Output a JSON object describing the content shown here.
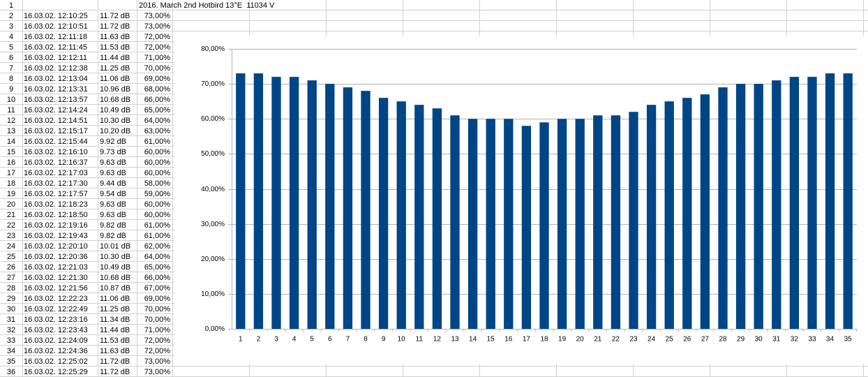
{
  "sheet": {
    "row_headers": [
      "1",
      "2",
      "3",
      "4",
      "5",
      "6",
      "7",
      "8",
      "9",
      "10",
      "11",
      "12",
      "13",
      "14",
      "15",
      "16",
      "17",
      "18",
      "19",
      "20",
      "21",
      "22",
      "23",
      "24",
      "25",
      "26",
      "27",
      "28",
      "29",
      "30",
      "31",
      "32",
      "33",
      "34",
      "35",
      "36"
    ],
    "title": "2016. March 2nd Hotbird 13°E  11034 V",
    "rows": [
      [
        "16.03.02. 12:10:25",
        "11.72 dB",
        "73,00%"
      ],
      [
        "16.03.02. 12:10:51",
        "11.72 dB",
        "73,00%"
      ],
      [
        "16.03.02. 12:11:18",
        "11.63 dB",
        "72,00%"
      ],
      [
        "16.03.02. 12:11:45",
        "11.53 dB",
        "72,00%"
      ],
      [
        "16.03.02. 12:12:11",
        "11.44 dB",
        "71,00%"
      ],
      [
        "16.03.02. 12:12:38",
        "11.25 dB",
        "70,00%"
      ],
      [
        "16.03.02. 12:13:04",
        "11.06 dB",
        "69,00%"
      ],
      [
        "16.03.02. 12:13:31",
        "10.96 dB",
        "68,00%"
      ],
      [
        "16.03.02. 12:13:57",
        "10.68 dB",
        "66,00%"
      ],
      [
        "16.03.02. 12:14:24",
        "10.49 dB",
        "65,00%"
      ],
      [
        "16.03.02. 12:14:51",
        "10.30 dB",
        "64,00%"
      ],
      [
        "16.03.02. 12:15:17",
        "10.20 dB",
        "63,00%"
      ],
      [
        "16.03.02. 12:15:44",
        "9.92 dB",
        "61,00%"
      ],
      [
        "16.03.02. 12:16:10",
        "9.73 dB",
        "60,00%"
      ],
      [
        "16.03.02. 12:16:37",
        "9.63 dB",
        "60,00%"
      ],
      [
        "16.03.02. 12:17:03",
        "9.63 dB",
        "60,00%"
      ],
      [
        "16.03.02. 12:17:30",
        "9.44 dB",
        "58,00%"
      ],
      [
        "16.03.02. 12:17:57",
        "9.54 dB",
        "59,00%"
      ],
      [
        "16.03.02. 12:18:23",
        "9.63 dB",
        "60,00%"
      ],
      [
        "16.03.02. 12:18:50",
        "9.63 dB",
        "60,00%"
      ],
      [
        "16.03.02. 12:19:16",
        "9.82 dB",
        "61,00%"
      ],
      [
        "16.03.02. 12:19:43",
        "9.82 dB",
        "61,00%"
      ],
      [
        "16.03.02. 12:20:10",
        "10.01 dB",
        "62,00%"
      ],
      [
        "16.03.02. 12:20:36",
        "10.30 dB",
        "64,00%"
      ],
      [
        "16.03.02. 12:21:03",
        "10.49 dB",
        "65,00%"
      ],
      [
        "16.03.02. 12:21:30",
        "10.68 dB",
        "66,00%"
      ],
      [
        "16.03.02. 12:21:56",
        "10.87 dB",
        "67,00%"
      ],
      [
        "16.03.02. 12:22:23",
        "11.06 dB",
        "69,00%"
      ],
      [
        "16.03.02. 12:22:49",
        "11.25 dB",
        "70,00%"
      ],
      [
        "16.03.02. 12:23:16",
        "11.34 dB",
        "70,00%"
      ],
      [
        "16.03.02. 12:23:43",
        "11.44 dB",
        "71,00%"
      ],
      [
        "16.03.02. 12:24:09",
        "11.53 dB",
        "72,00%"
      ],
      [
        "16.03.02. 12:24:36",
        "11.63 dB",
        "72,00%"
      ],
      [
        "16.03.02. 12:25:02",
        "11.72 dB",
        "73,00%"
      ],
      [
        "16.03.02. 12:25:29",
        "11.72 dB",
        "73,00%"
      ]
    ]
  },
  "chart_data": {
    "type": "bar",
    "categories": [
      "1",
      "2",
      "3",
      "4",
      "5",
      "6",
      "7",
      "8",
      "9",
      "10",
      "11",
      "12",
      "13",
      "14",
      "15",
      "16",
      "17",
      "18",
      "19",
      "20",
      "21",
      "22",
      "23",
      "24",
      "25",
      "26",
      "27",
      "28",
      "29",
      "30",
      "31",
      "32",
      "33",
      "34",
      "35"
    ],
    "values": [
      73,
      73,
      72,
      72,
      71,
      70,
      69,
      68,
      66,
      65,
      64,
      63,
      61,
      60,
      60,
      60,
      58,
      59,
      60,
      60,
      61,
      61,
      62,
      64,
      65,
      66,
      67,
      69,
      70,
      70,
      71,
      72,
      72,
      73,
      73
    ],
    "color": "#004586",
    "ylim": [
      0,
      80
    ],
    "yticks": [
      {
        "value": 0,
        "label": "0,00%"
      },
      {
        "value": 10,
        "label": "10,00%"
      },
      {
        "value": 20,
        "label": "20,00%"
      },
      {
        "value": 30,
        "label": "30,00%"
      },
      {
        "value": 40,
        "label": "40,00%"
      },
      {
        "value": 50,
        "label": "50,00%"
      },
      {
        "value": 60,
        "label": "60,00%"
      },
      {
        "value": 70,
        "label": "70,00%"
      },
      {
        "value": 80,
        "label": "80,00%"
      }
    ],
    "grid": true
  }
}
